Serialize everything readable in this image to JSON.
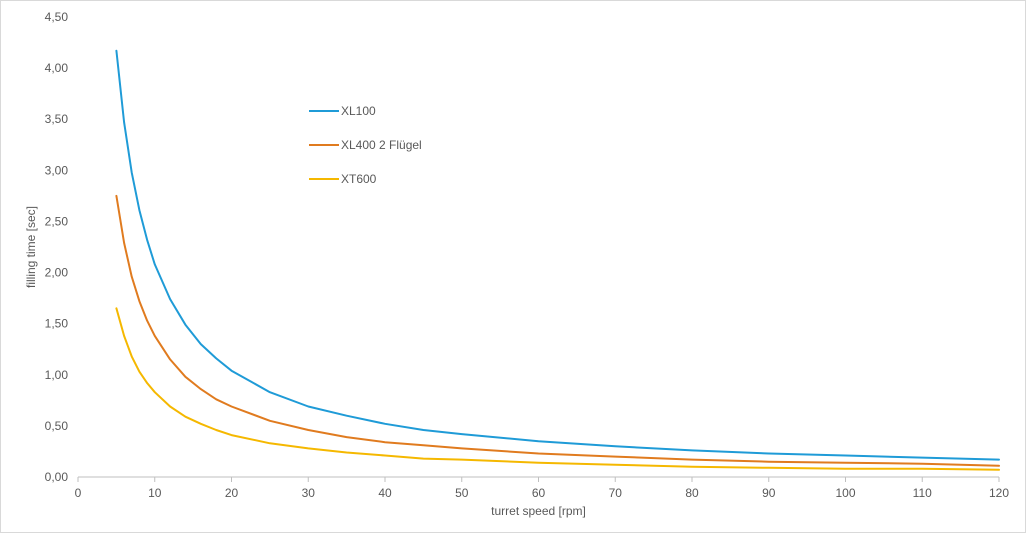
{
  "chart_data": {
    "type": "line",
    "title": "",
    "xlabel": "turret speed [rpm]",
    "ylabel": "filling time [sec]",
    "xlim": [
      0,
      120
    ],
    "ylim": [
      0,
      4.5
    ],
    "x_ticks": [
      0,
      10,
      20,
      30,
      40,
      50,
      60,
      70,
      80,
      90,
      100,
      110,
      120
    ],
    "x_tick_labels": [
      "0",
      "10",
      "20",
      "30",
      "40",
      "50",
      "60",
      "70",
      "80",
      "90",
      "100",
      "110",
      "120"
    ],
    "y_ticks": [
      0,
      0.5,
      1,
      1.5,
      2,
      2.5,
      3,
      3.5,
      4,
      4.5
    ],
    "y_tick_labels": [
      "0,00",
      "0,50",
      "1,00",
      "1,50",
      "2,00",
      "2,50",
      "3,00",
      "3,50",
      "4,00",
      "4,50"
    ],
    "grid": false,
    "legend_position": "upper-left-inside",
    "x": [
      5,
      6,
      7,
      8,
      9,
      10,
      12,
      14,
      16,
      18,
      20,
      25,
      30,
      35,
      40,
      45,
      50,
      60,
      70,
      80,
      90,
      100,
      110,
      120
    ],
    "series": [
      {
        "name": "XL100",
        "color": "#1f9bd7",
        "values": [
          4.17,
          3.47,
          2.98,
          2.61,
          2.32,
          2.08,
          1.74,
          1.49,
          1.3,
          1.16,
          1.04,
          0.83,
          0.69,
          0.6,
          0.52,
          0.46,
          0.42,
          0.35,
          0.3,
          0.26,
          0.23,
          0.21,
          0.19,
          0.17
        ]
      },
      {
        "name": "XL400 2 Flügel",
        "color": "#e07b1f",
        "values": [
          2.75,
          2.29,
          1.96,
          1.72,
          1.53,
          1.38,
          1.15,
          0.98,
          0.86,
          0.76,
          0.69,
          0.55,
          0.46,
          0.39,
          0.34,
          0.31,
          0.28,
          0.23,
          0.2,
          0.17,
          0.15,
          0.14,
          0.13,
          0.11
        ]
      },
      {
        "name": "XT600",
        "color": "#f5b800",
        "values": [
          1.65,
          1.38,
          1.18,
          1.03,
          0.92,
          0.83,
          0.69,
          0.59,
          0.52,
          0.46,
          0.41,
          0.33,
          0.28,
          0.24,
          0.21,
          0.18,
          0.17,
          0.14,
          0.12,
          0.1,
          0.09,
          0.08,
          0.08,
          0.07
        ]
      }
    ]
  }
}
